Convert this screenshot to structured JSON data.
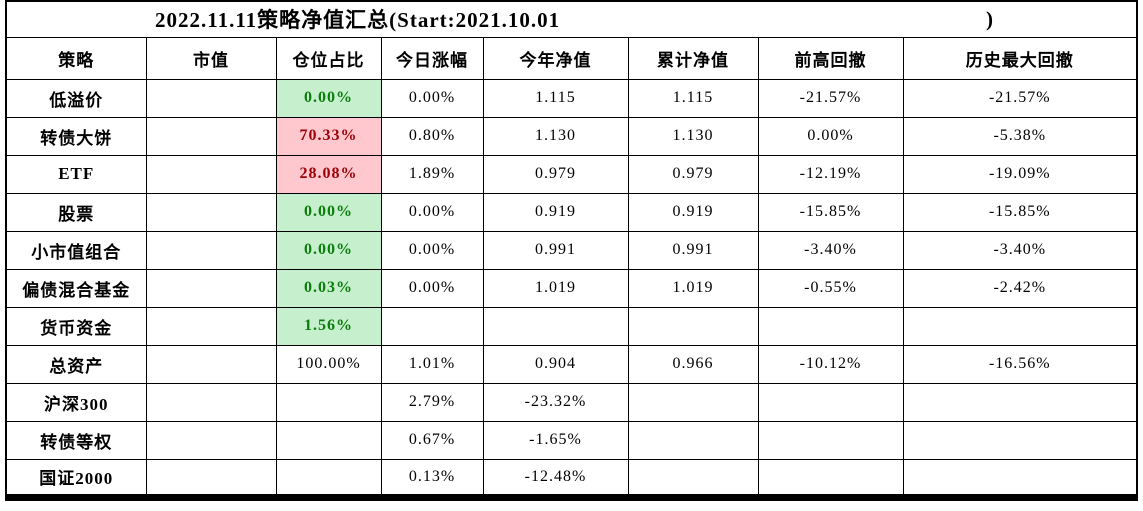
{
  "title": {
    "text": "2022.11.11策略净值汇总(Start:2021.10.01",
    "closing_paren": ")"
  },
  "columns": [
    {
      "key": "strategy",
      "label": "策略"
    },
    {
      "key": "market_value",
      "label": "市值"
    },
    {
      "key": "position",
      "label": "仓位占比"
    },
    {
      "key": "today_change",
      "label": "今日涨幅"
    },
    {
      "key": "ytd_nav",
      "label": "今年净值"
    },
    {
      "key": "cum_nav",
      "label": "累计净值"
    },
    {
      "key": "drawdown_from_high",
      "label": "前高回撤"
    },
    {
      "key": "max_drawdown",
      "label": "历史最大回撤"
    }
  ],
  "rows": [
    {
      "strategy": "低溢价",
      "market_value": "",
      "position": "0.00%",
      "position_style": "green",
      "today_change": "0.00%",
      "ytd_nav": "1.115",
      "cum_nav": "1.115",
      "drawdown_from_high": "-21.57%",
      "max_drawdown": "-21.57%"
    },
    {
      "strategy": "转债大饼",
      "market_value": "",
      "position": "70.33%",
      "position_style": "red",
      "today_change": "0.80%",
      "ytd_nav": "1.130",
      "cum_nav": "1.130",
      "drawdown_from_high": "0.00%",
      "max_drawdown": "-5.38%"
    },
    {
      "strategy": "ETF",
      "market_value": "",
      "position": "28.08%",
      "position_style": "red",
      "today_change": "1.89%",
      "ytd_nav": "0.979",
      "cum_nav": "0.979",
      "drawdown_from_high": "-12.19%",
      "max_drawdown": "-19.09%"
    },
    {
      "strategy": "股票",
      "market_value": "",
      "position": "0.00%",
      "position_style": "green",
      "today_change": "0.00%",
      "ytd_nav": "0.919",
      "cum_nav": "0.919",
      "drawdown_from_high": "-15.85%",
      "max_drawdown": "-15.85%"
    },
    {
      "strategy": "小市值组合",
      "market_value": "",
      "position": "0.00%",
      "position_style": "green",
      "today_change": "0.00%",
      "ytd_nav": "0.991",
      "cum_nav": "0.991",
      "drawdown_from_high": "-3.40%",
      "max_drawdown": "-3.40%"
    },
    {
      "strategy": "偏债混合基金",
      "market_value": "",
      "position": "0.03%",
      "position_style": "green",
      "today_change": "0.00%",
      "ytd_nav": "1.019",
      "cum_nav": "1.019",
      "drawdown_from_high": "-0.55%",
      "max_drawdown": "-2.42%"
    },
    {
      "strategy": "货币资金",
      "market_value": "",
      "position": "1.56%",
      "position_style": "green",
      "today_change": "",
      "ytd_nav": "",
      "cum_nav": "",
      "drawdown_from_high": "",
      "max_drawdown": ""
    },
    {
      "strategy": "总资产",
      "market_value": "",
      "position": "100.00%",
      "position_style": "none",
      "today_change": "1.01%",
      "ytd_nav": "0.904",
      "cum_nav": "0.966",
      "drawdown_from_high": "-10.12%",
      "max_drawdown": "-16.56%"
    },
    {
      "strategy": "沪深300",
      "market_value": "",
      "position": "",
      "position_style": "none",
      "today_change": "2.79%",
      "ytd_nav": "-23.32%",
      "cum_nav": "",
      "drawdown_from_high": "",
      "max_drawdown": ""
    },
    {
      "strategy": "转债等权",
      "market_value": "",
      "position": "",
      "position_style": "none",
      "today_change": "0.67%",
      "ytd_nav": "-1.65%",
      "cum_nav": "",
      "drawdown_from_high": "",
      "max_drawdown": ""
    },
    {
      "strategy": "国证2000",
      "market_value": "",
      "position": "",
      "position_style": "none",
      "today_change": "0.13%",
      "ytd_nav": "-12.48%",
      "cum_nav": "",
      "drawdown_from_high": "",
      "max_drawdown": ""
    }
  ],
  "colors": {
    "green_bg": "#c6efce",
    "green_text": "#0a7d0a",
    "red_bg": "#ffc7ce",
    "red_text": "#9c0006",
    "grid_line": "#000000"
  }
}
